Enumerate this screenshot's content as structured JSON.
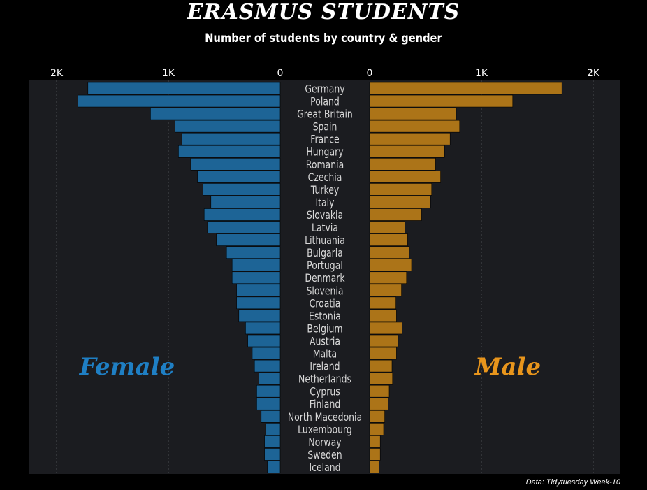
{
  "title": "ERASMUS STUDENTS",
  "subtitle": "Number of students by country & gender",
  "caption": "Data: Tidytuesday Week-10",
  "colors": {
    "background": "#000000",
    "panel": "#1b1c20",
    "female": "#1d6496",
    "male": "#ac7418",
    "female_label": "#1f7fc4",
    "male_label": "#e8951c",
    "text": "#ffffff",
    "country_text": "#d8d8d8"
  },
  "chart_data": {
    "type": "bar",
    "orientation": "horizontal-diverging",
    "categories": [
      "Germany",
      "Poland",
      "Great Britain",
      "Spain",
      "France",
      "Hungary",
      "Romania",
      "Czechia",
      "Turkey",
      "Italy",
      "Slovakia",
      "Latvia",
      "Lithuania",
      "Bulgaria",
      "Portugal",
      "Denmark",
      "Slovenia",
      "Croatia",
      "Estonia",
      "Belgium",
      "Austria",
      "Malta",
      "Ireland",
      "Netherlands",
      "Cyprus",
      "Finland",
      "North Macedonia",
      "Luxembourg",
      "Norway",
      "Sweden",
      "Iceland"
    ],
    "series": [
      {
        "name": "Female",
        "values": [
          1720,
          1810,
          1160,
          940,
          880,
          910,
          800,
          740,
          690,
          620,
          680,
          650,
          570,
          480,
          430,
          430,
          390,
          390,
          370,
          310,
          290,
          250,
          230,
          190,
          210,
          210,
          170,
          130,
          140,
          140,
          115
        ]
      },
      {
        "name": "Male",
        "values": [
          1720,
          1280,
          775,
          805,
          720,
          670,
          590,
          635,
          555,
          545,
          465,
          315,
          340,
          355,
          375,
          330,
          285,
          235,
          240,
          290,
          255,
          240,
          200,
          205,
          175,
          165,
          135,
          125,
          95,
          95,
          85
        ]
      }
    ],
    "x_ticks_left": [
      "2K",
      "1K",
      "0"
    ],
    "x_ticks_right": [
      "0",
      "1K",
      "2K"
    ],
    "xlim": [
      0,
      2000
    ],
    "grid": "vertical dotted",
    "annotations": {
      "left": "Female",
      "right": "Male"
    }
  }
}
